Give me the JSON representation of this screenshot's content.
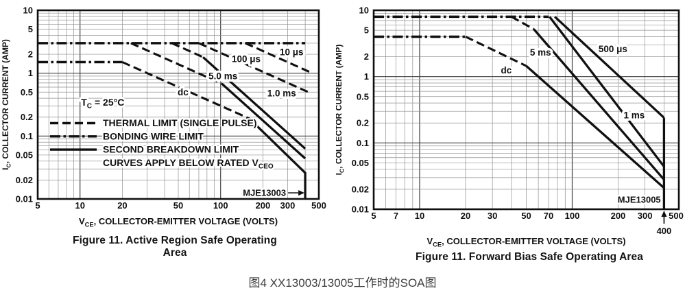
{
  "page": {
    "background": "#ffffff",
    "caption": "图4 XX13003/13005工作时的SOA图",
    "ink_color": "#101010",
    "grid_minor_color": "#8f8f8f",
    "grid_major_color": "#3f3f3f"
  },
  "chart_data": [
    {
      "name": "active-region-soa",
      "device": "MJE13003",
      "type": "line",
      "x_scale": "log",
      "y_scale": "log",
      "x_range": [
        5,
        500
      ],
      "y_range": [
        0.01,
        10
      ],
      "grid": true,
      "x_ticks": [
        {
          "v": 5,
          "label": "5"
        },
        {
          "v": 10,
          "label": "10"
        },
        {
          "v": 20,
          "label": "20"
        },
        {
          "v": 50,
          "label": "50"
        },
        {
          "v": 100,
          "label": "100"
        },
        {
          "v": 200,
          "label": "200"
        },
        {
          "v": 300,
          "label": "300"
        },
        {
          "v": 500,
          "label": "500"
        }
      ],
      "y_ticks": [
        {
          "v": 10,
          "label": "10"
        },
        {
          "v": 5,
          "label": "5"
        },
        {
          "v": 2,
          "label": "2"
        },
        {
          "v": 1,
          "label": "1"
        },
        {
          "v": 0.5,
          "label": "0.5"
        },
        {
          "v": 0.2,
          "label": "0.2"
        },
        {
          "v": 0.1,
          "label": "0.1"
        },
        {
          "v": 0.05,
          "label": "0.05"
        },
        {
          "v": 0.02,
          "label": "0.02"
        },
        {
          "v": 0.01,
          "label": "0.01"
        }
      ],
      "xlabel": [
        {
          "t": "V"
        },
        {
          "t": "CE",
          "sub": true
        },
        {
          "t": ", COLLECTOR-EMITTER VOLTAGE (VOLTS)"
        }
      ],
      "ylabel": [
        {
          "t": "I"
        },
        {
          "t": "C",
          "sub": true
        },
        {
          "t": ", COLLECTOR CURRENT (AMP)"
        }
      ],
      "series": [
        {
          "name": "bonding-wire-limit-pulsed",
          "style": "dashdot",
          "points": [
            [
              5,
              3
            ],
            [
              400,
              3
            ]
          ]
        },
        {
          "name": "bonding-wire-limit-dc",
          "style": "dashdot",
          "points": [
            [
              5,
              1.5
            ],
            [
              20,
              1.5
            ]
          ]
        },
        {
          "name": "thermal-limit-dc",
          "style": "dashed",
          "points": [
            [
              20,
              1.5
            ],
            [
              160,
              0.19
            ]
          ]
        },
        {
          "name": "second-breakdown-dc",
          "style": "solid",
          "points": [
            [
              160,
              0.19
            ],
            [
              400,
              0.026
            ],
            [
              400,
              0.01
            ]
          ]
        },
        {
          "name": "thermal-limit-5ms",
          "style": "dashed",
          "points": [
            [
              23,
              3
            ],
            [
              102,
              0.68
            ]
          ]
        },
        {
          "name": "second-breakdown-5ms",
          "style": "solid",
          "points": [
            [
              102,
              0.68
            ],
            [
              400,
              0.044
            ]
          ]
        },
        {
          "name": "thermal-limit-1ms",
          "style": "dashed",
          "points": [
            [
              45,
              3
            ],
            [
              75,
              1.8
            ]
          ]
        },
        {
          "name": "second-breakdown-1ms",
          "style": "solid",
          "points": [
            [
              75,
              1.8
            ],
            [
              400,
              0.063
            ]
          ]
        },
        {
          "name": "thermal-limit-100us",
          "style": "dashed",
          "points": [
            [
              70,
              3
            ],
            [
              430,
              0.49
            ]
          ]
        },
        {
          "name": "thermal-limit-10us",
          "style": "dashed",
          "points": [
            [
              150,
              3
            ],
            [
              450,
              1.0
            ]
          ]
        }
      ],
      "curve_labels": [
        {
          "text": "10 μs",
          "v": 320,
          "i": 2.15
        },
        {
          "text": "100 μs",
          "v": 152,
          "i": 1.68
        },
        {
          "text": "5.0 ms",
          "v": 104,
          "i": 0.9
        },
        {
          "text": "dc",
          "v": 54,
          "i": 0.5
        },
        {
          "text": "1.0 ms",
          "v": 272,
          "i": 0.48
        }
      ],
      "annotations": {
        "temperature": {
          "segments": [
            {
              "t": "T"
            },
            {
              "t": "C",
              "sub": true
            },
            {
              "t": " = 25°C"
            }
          ],
          "v": 14.5,
          "i": 0.34
        },
        "device_callout": {
          "text": "MJE13003",
          "i": 0.0125,
          "arrow_to_v": 400
        }
      },
      "legend": {
        "items": [
          {
            "style": "dashed",
            "segments": [
              {
                "t": "THERMAL LIMIT (SINGLE PULSE)"
              }
            ]
          },
          {
            "style": "dashdot",
            "segments": [
              {
                "t": "BONDING WIRE LIMIT"
              }
            ]
          },
          {
            "style": "solid",
            "segments": [
              {
                "t": "SECOND BREAKDOWN LIMIT"
              }
            ]
          },
          {
            "style": "none",
            "segments": [
              {
                "t": "CURVES APPLY BELOW RATED V"
              },
              {
                "t": "CEO",
                "sub": true
              }
            ]
          }
        ]
      },
      "caption_lines": [
        "Figure 11. Active Region Safe Operating",
        "Area"
      ]
    },
    {
      "name": "forward-bias-soa",
      "device": "MJE13005",
      "type": "line",
      "x_scale": "log",
      "y_scale": "log",
      "x_range": [
        5,
        500
      ],
      "y_range": [
        0.01,
        10
      ],
      "grid": true,
      "x_ticks": [
        {
          "v": 5,
          "label": "5"
        },
        {
          "v": 7,
          "label": "7"
        },
        {
          "v": 10,
          "label": "10"
        },
        {
          "v": 20,
          "label": "20"
        },
        {
          "v": 30,
          "label": "30"
        },
        {
          "v": 50,
          "label": "50"
        },
        {
          "v": 70,
          "label": "70"
        },
        {
          "v": 100,
          "label": "100"
        },
        {
          "v": 200,
          "label": "200"
        },
        {
          "v": 300,
          "label": "300"
        },
        {
          "v": 500,
          "label": "500"
        }
      ],
      "y_ticks": [
        {
          "v": 10,
          "label": "10"
        },
        {
          "v": 5,
          "label": "5"
        },
        {
          "v": 2,
          "label": "2"
        },
        {
          "v": 1,
          "label": "1"
        },
        {
          "v": 0.5,
          "label": "0.5"
        },
        {
          "v": 0.2,
          "label": "0.2"
        },
        {
          "v": 0.1,
          "label": "0.1"
        },
        {
          "v": 0.05,
          "label": "0.05"
        },
        {
          "v": 0.02,
          "label": "0.02"
        },
        {
          "v": 0.01,
          "label": "0.01"
        }
      ],
      "xlabel": [
        {
          "t": "V"
        },
        {
          "t": "CE",
          "sub": true
        },
        {
          "t": ", COLLECTOR-EMITTER VOLTAGE (VOLTS)"
        }
      ],
      "ylabel": [
        {
          "t": "I"
        },
        {
          "t": "C",
          "sub": true
        },
        {
          "t": ", COLLECTOR CURRENT (AMP)"
        }
      ],
      "series": [
        {
          "name": "bonding-wire-limit-pulsed",
          "style": "dashdot",
          "points": [
            [
              5,
              8
            ],
            [
              70,
              8
            ]
          ]
        },
        {
          "name": "bonding-wire-limit-dc",
          "style": "dashdot",
          "points": [
            [
              5,
              4
            ],
            [
              20,
              4
            ]
          ]
        },
        {
          "name": "thermal-limit-dc",
          "style": "dashed",
          "points": [
            [
              20,
              4
            ],
            [
              50,
              1.45
            ]
          ]
        },
        {
          "name": "second-breakdown-dc",
          "style": "solid",
          "points": [
            [
              50,
              1.45
            ],
            [
              400,
              0.021
            ]
          ]
        },
        {
          "name": "thermal-limit-5ms",
          "style": "dashed",
          "points": [
            [
              40,
              8
            ],
            [
              56,
              5.2
            ]
          ]
        },
        {
          "name": "second-breakdown-5ms",
          "style": "solid",
          "points": [
            [
              56,
              5.2
            ],
            [
              400,
              0.028
            ]
          ]
        },
        {
          "name": "second-breakdown-1ms",
          "style": "solid",
          "points": [
            [
              71,
              8
            ],
            [
              400,
              0.044
            ]
          ]
        },
        {
          "name": "second-breakdown-500us",
          "style": "solid",
          "points": [
            [
              77,
              8
            ],
            [
              400,
              0.24
            ]
          ]
        },
        {
          "name": "vceo-limit-400v",
          "style": "solid",
          "points": [
            [
              400,
              0.24
            ],
            [
              400,
              0.01
            ]
          ]
        }
      ],
      "curve_labels": [
        {
          "text": "500 μs",
          "v": 185,
          "i": 2.6
        },
        {
          "text": "5 ms",
          "v": 62,
          "i": 2.3
        },
        {
          "text": "dc",
          "v": 37,
          "i": 1.25
        },
        {
          "text": "1 ms",
          "v": 255,
          "i": 0.26
        }
      ],
      "annotations": {
        "device_label": {
          "text": "MJE13005",
          "v": 275,
          "i": 0.014
        },
        "below_axis_callout": {
          "text": "400",
          "v": 400
        }
      },
      "caption_lines": [
        "Figure 11. Forward Bias Safe Operating Area"
      ]
    }
  ]
}
